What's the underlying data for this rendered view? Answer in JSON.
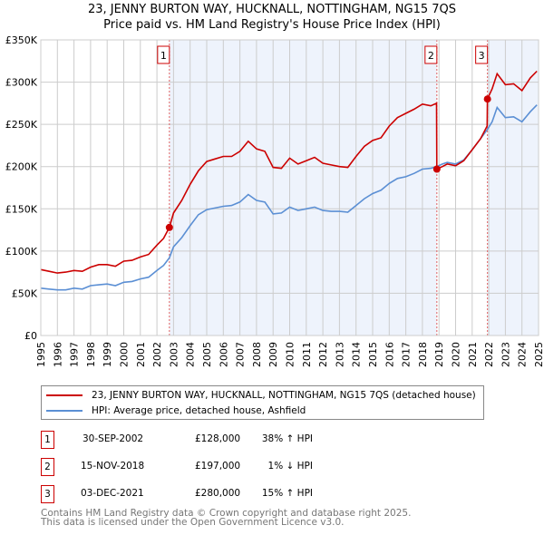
{
  "title": "23, JENNY BURTON WAY, HUCKNALL, NOTTINGHAM, NG15 7QS",
  "subtitle": "Price paid vs. HM Land Registry's House Price Index (HPI)",
  "chart_data": {
    "type": "line",
    "xlim": [
      1995,
      2025
    ],
    "ylim": [
      0,
      350000
    ],
    "yticks": [
      {
        "v": 0,
        "label": "£0"
      },
      {
        "v": 50000,
        "label": "£50K"
      },
      {
        "v": 100000,
        "label": "£100K"
      },
      {
        "v": 150000,
        "label": "£150K"
      },
      {
        "v": 200000,
        "label": "£200K"
      },
      {
        "v": 250000,
        "label": "£250K"
      },
      {
        "v": 300000,
        "label": "£300K"
      },
      {
        "v": 350000,
        "label": "£350K"
      }
    ],
    "xticks": [
      "1995",
      "1996",
      "1997",
      "1998",
      "1999",
      "2000",
      "2001",
      "2002",
      "2003",
      "2004",
      "2005",
      "2006",
      "2007",
      "2008",
      "2009",
      "2010",
      "2011",
      "2012",
      "2013",
      "2014",
      "2015",
      "2016",
      "2017",
      "2018",
      "2019",
      "2020",
      "2021",
      "2022",
      "2023",
      "2024",
      "2025"
    ],
    "colors": {
      "price": "#cc0000",
      "hpi": "#5b8fd4",
      "shade": "#eef3fc",
      "grid": "#cccccc"
    },
    "shaded_ranges": [
      [
        2002.75,
        2018.87
      ],
      [
        2021.92,
        2025
      ]
    ],
    "series": [
      {
        "name": "23, JENNY BURTON WAY, HUCKNALL, NOTTINGHAM, NG15 7QS (detached house)",
        "color": "#cc0000",
        "x": [
          1995,
          1995.5,
          1996,
          1996.5,
          1997,
          1997.5,
          1998,
          1998.5,
          1999,
          1999.5,
          2000,
          2000.5,
          2001,
          2001.5,
          2002,
          2002.4,
          2002.75,
          2003,
          2003.5,
          2004,
          2004.5,
          2005,
          2005.5,
          2006,
          2006.5,
          2007,
          2007.5,
          2008,
          2008.5,
          2009,
          2009.5,
          2010,
          2010.5,
          2011,
          2011.5,
          2012,
          2012.5,
          2013,
          2013.5,
          2014,
          2014.5,
          2015,
          2015.5,
          2016,
          2016.5,
          2017,
          2017.5,
          2018,
          2018.5,
          2018.85,
          2018.87,
          2019.2,
          2019.5,
          2020,
          2020.5,
          2021,
          2021.5,
          2021.9,
          2021.92,
          2022.2,
          2022.5,
          2023,
          2023.5,
          2024,
          2024.5,
          2024.9
        ],
        "y": [
          78000,
          76000,
          74000,
          75000,
          77000,
          76000,
          81000,
          84000,
          84000,
          82000,
          88000,
          89000,
          93000,
          96000,
          107000,
          115000,
          128000,
          145000,
          160000,
          179000,
          195000,
          206000,
          209000,
          212000,
          212000,
          218000,
          230000,
          221000,
          218000,
          199000,
          198000,
          210000,
          203000,
          207000,
          211000,
          204000,
          202000,
          200000,
          199000,
          212000,
          224000,
          231000,
          234000,
          248000,
          258000,
          263000,
          268000,
          274000,
          272000,
          275000,
          197000,
          200000,
          203000,
          201000,
          207000,
          220000,
          233000,
          248000,
          280000,
          292000,
          310000,
          297000,
          298000,
          290000,
          305000,
          313000
        ]
      },
      {
        "name": "HPI: Average price, detached house, Ashfield",
        "color": "#5b8fd4",
        "x": [
          1995,
          1995.5,
          1996,
          1996.5,
          1997,
          1997.5,
          1998,
          1998.5,
          1999,
          1999.5,
          2000,
          2000.5,
          2001,
          2001.5,
          2002,
          2002.4,
          2002.75,
          2003,
          2003.5,
          2004,
          2004.5,
          2005,
          2005.5,
          2006,
          2006.5,
          2007,
          2007.5,
          2008,
          2008.5,
          2009,
          2009.5,
          2010,
          2010.5,
          2011,
          2011.5,
          2012,
          2012.5,
          2013,
          2013.5,
          2014,
          2014.5,
          2015,
          2015.5,
          2016,
          2016.5,
          2017,
          2017.5,
          2018,
          2018.5,
          2018.87,
          2019.2,
          2019.5,
          2020,
          2020.5,
          2021,
          2021.5,
          2021.92,
          2022.2,
          2022.5,
          2023,
          2023.5,
          2024,
          2024.5,
          2024.9
        ],
        "y": [
          56000,
          55000,
          54000,
          54000,
          56000,
          55000,
          59000,
          60000,
          61000,
          59000,
          63000,
          64000,
          67000,
          69000,
          77000,
          83000,
          92000,
          105000,
          116000,
          130000,
          143000,
          149000,
          151000,
          153000,
          154000,
          158000,
          167000,
          160000,
          158000,
          144000,
          145000,
          152000,
          148000,
          150000,
          152000,
          148000,
          147000,
          147000,
          146000,
          154000,
          162000,
          168000,
          172000,
          180000,
          186000,
          188000,
          192000,
          197000,
          198000,
          200000,
          203000,
          205000,
          203000,
          208000,
          220000,
          233000,
          244000,
          253000,
          270000,
          258000,
          259000,
          253000,
          265000,
          273000
        ]
      }
    ],
    "sales": [
      {
        "id": "1",
        "x": 2002.75,
        "y": 128000
      },
      {
        "id": "2",
        "x": 2018.87,
        "y": 197000
      },
      {
        "id": "3",
        "x": 2021.92,
        "y": 280000
      }
    ]
  },
  "legend": {
    "price_label": "23, JENNY BURTON WAY, HUCKNALL, NOTTINGHAM, NG15 7QS (detached house)",
    "hpi_label": "HPI: Average price, detached house, Ashfield"
  },
  "transactions": [
    {
      "num": "1",
      "date": "30-SEP-2002",
      "price": "£128,000",
      "delta": "38% ↑ HPI"
    },
    {
      "num": "2",
      "date": "15-NOV-2018",
      "price": "£197,000",
      "delta": "1% ↓ HPI"
    },
    {
      "num": "3",
      "date": "03-DEC-2021",
      "price": "£280,000",
      "delta": "15% ↑ HPI"
    }
  ],
  "footer": {
    "line1": "Contains HM Land Registry data © Crown copyright and database right 2025.",
    "line2": "This data is licensed under the Open Government Licence v3.0."
  }
}
